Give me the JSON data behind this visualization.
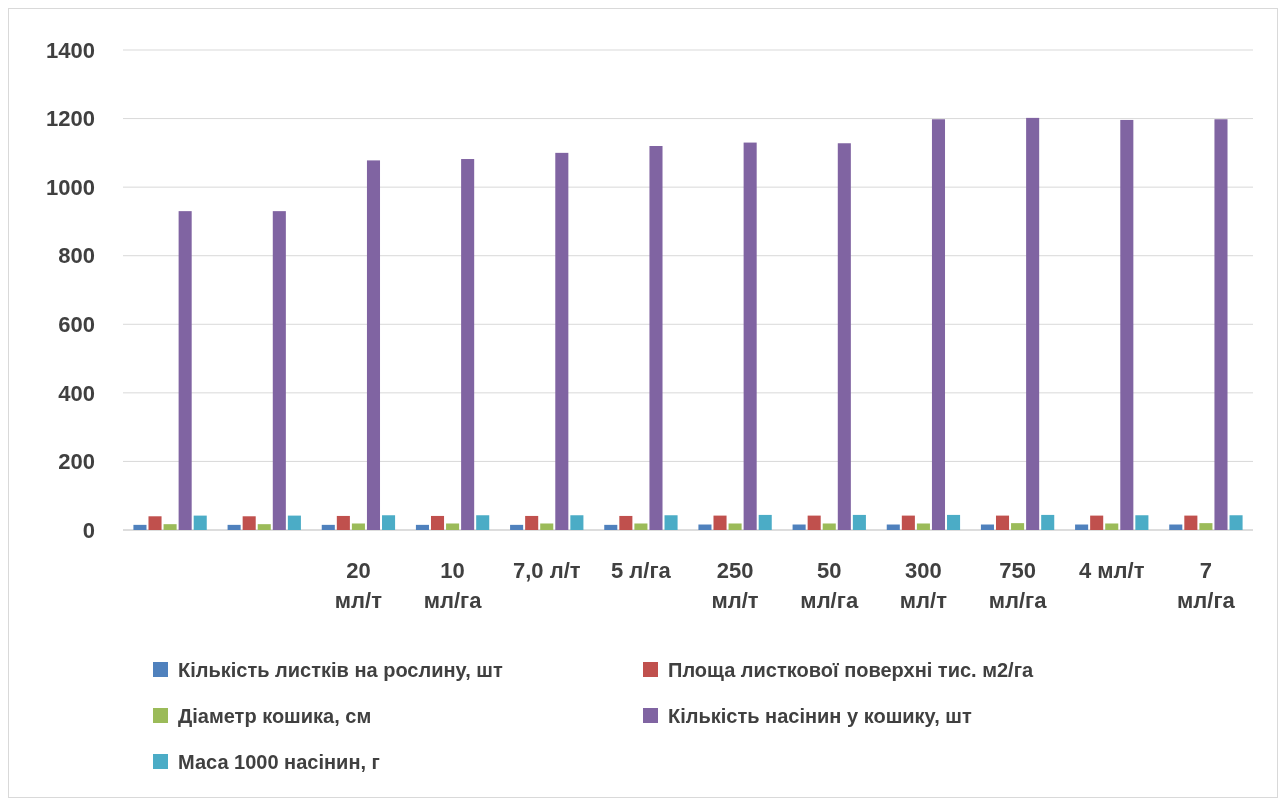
{
  "chart_data": {
    "type": "bar",
    "categories": [
      null,
      null,
      "20\nмл/т",
      "10\nмл/га",
      "7,0 л/т",
      "5 л/га",
      "250\nмл/т",
      "50\nмл/га",
      "300\nмл/т",
      "750\nмл/га",
      "4 мл/т",
      "7\nмл/га"
    ],
    "series": [
      {
        "name": "Кількість листків на рослину, шт",
        "color": "#4f81bd",
        "values": [
          15,
          15,
          15,
          15,
          15,
          15,
          16,
          16,
          16,
          16,
          16,
          16
        ]
      },
      {
        "name": "Площа листкової поверхні тис. м2/га",
        "color": "#c0504d",
        "values": [
          40,
          40,
          41,
          41,
          41,
          41,
          42,
          42,
          42,
          42,
          42,
          42
        ]
      },
      {
        "name": "Діаметр кошика, см",
        "color": "#9bbb59",
        "values": [
          17,
          17,
          19,
          19,
          19,
          19,
          19,
          19,
          19,
          20,
          19,
          20
        ]
      },
      {
        "name": "Кількість насінин у кошику, шт",
        "color": "#8064a2",
        "values": [
          930,
          930,
          1078,
          1082,
          1100,
          1120,
          1130,
          1128,
          1198,
          1202,
          1196,
          1198
        ]
      },
      {
        "name": "Маса 1000 насінин, г",
        "color": "#4bacc6",
        "values": [
          42,
          42,
          43,
          43,
          43,
          43,
          44,
          44,
          44,
          44,
          43,
          43
        ]
      }
    ],
    "ylim": [
      0,
      1400
    ],
    "yticks": [
      0,
      200,
      400,
      600,
      800,
      1000,
      1200,
      1400
    ],
    "grid": "y",
    "legend": "bottom"
  }
}
